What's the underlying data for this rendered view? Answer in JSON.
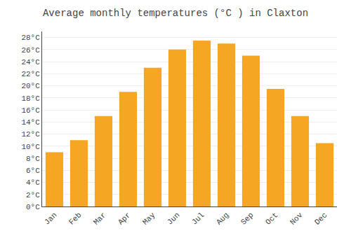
{
  "chart_data": {
    "type": "bar",
    "title": "Average monthly temperatures (°C ) in Claxton",
    "categories": [
      "Jan",
      "Feb",
      "Mar",
      "Apr",
      "May",
      "Jun",
      "Jul",
      "Aug",
      "Sep",
      "Oct",
      "Nov",
      "Dec"
    ],
    "values": [
      9.0,
      11.0,
      15.0,
      19.0,
      23.0,
      26.0,
      27.5,
      27.0,
      25.0,
      19.5,
      15.0,
      10.5
    ],
    "color": "#F5A623",
    "ylim": [
      0,
      29
    ],
    "yticks": [
      {
        "value": 0,
        "label": "0°C"
      },
      {
        "value": 2,
        "label": "2°C"
      },
      {
        "value": 4,
        "label": "4°C"
      },
      {
        "value": 6,
        "label": "6°C"
      },
      {
        "value": 8,
        "label": "8°C"
      },
      {
        "value": 10,
        "label": "10°C"
      },
      {
        "value": 12,
        "label": "12°C"
      },
      {
        "value": 14,
        "label": "14°C"
      },
      {
        "value": 16,
        "label": "16°C"
      },
      {
        "value": 18,
        "label": "18°C"
      },
      {
        "value": 20,
        "label": "20°C"
      },
      {
        "value": 22,
        "label": "22°C"
      },
      {
        "value": 24,
        "label": "24°C"
      },
      {
        "value": 26,
        "label": "26°C"
      },
      {
        "value": 28,
        "label": "28°C"
      }
    ],
    "grid": true
  }
}
